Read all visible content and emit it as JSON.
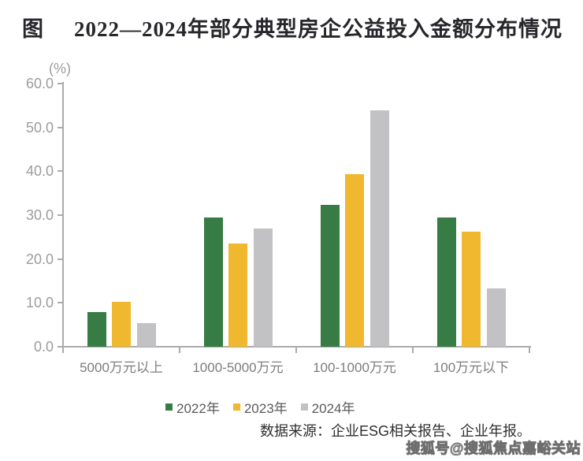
{
  "header": {
    "prefix": "图",
    "title": "2022—2024年部分典型房企公益投入金额分布情况"
  },
  "chart_data": {
    "type": "bar",
    "title": "2022—2024年部分典型房企公益投入金额分布情况",
    "unit_label": "(%)",
    "categories": [
      "5000万元以上",
      "1000-5000万元",
      "100-1000万元",
      "100万元以下"
    ],
    "series": [
      {
        "name": "2022年",
        "color": "#377c44",
        "values": [
          7.9,
          29.5,
          32.3,
          29.5
        ]
      },
      {
        "name": "2023年",
        "color": "#efb82f",
        "values": [
          10.3,
          23.5,
          39.4,
          26.2
        ]
      },
      {
        "name": "2024年",
        "color": "#c2c2c4",
        "values": [
          5.3,
          26.9,
          53.9,
          13.3
        ]
      }
    ],
    "ylim": [
      0,
      60
    ],
    "y_tick_values": [
      0,
      10,
      20,
      30,
      40,
      50,
      60
    ],
    "y_tick_labels": [
      "0.0",
      "10.0",
      "20.0",
      "30.0",
      "40.0",
      "50.0",
      "60.0"
    ],
    "grid": false,
    "legend_position": "bottom"
  },
  "footer": {
    "source": "数据来源：企业ESG相关报告、企业年报。"
  },
  "watermark": {
    "text": "搜狐号@搜狐焦点嘉峪关站"
  }
}
